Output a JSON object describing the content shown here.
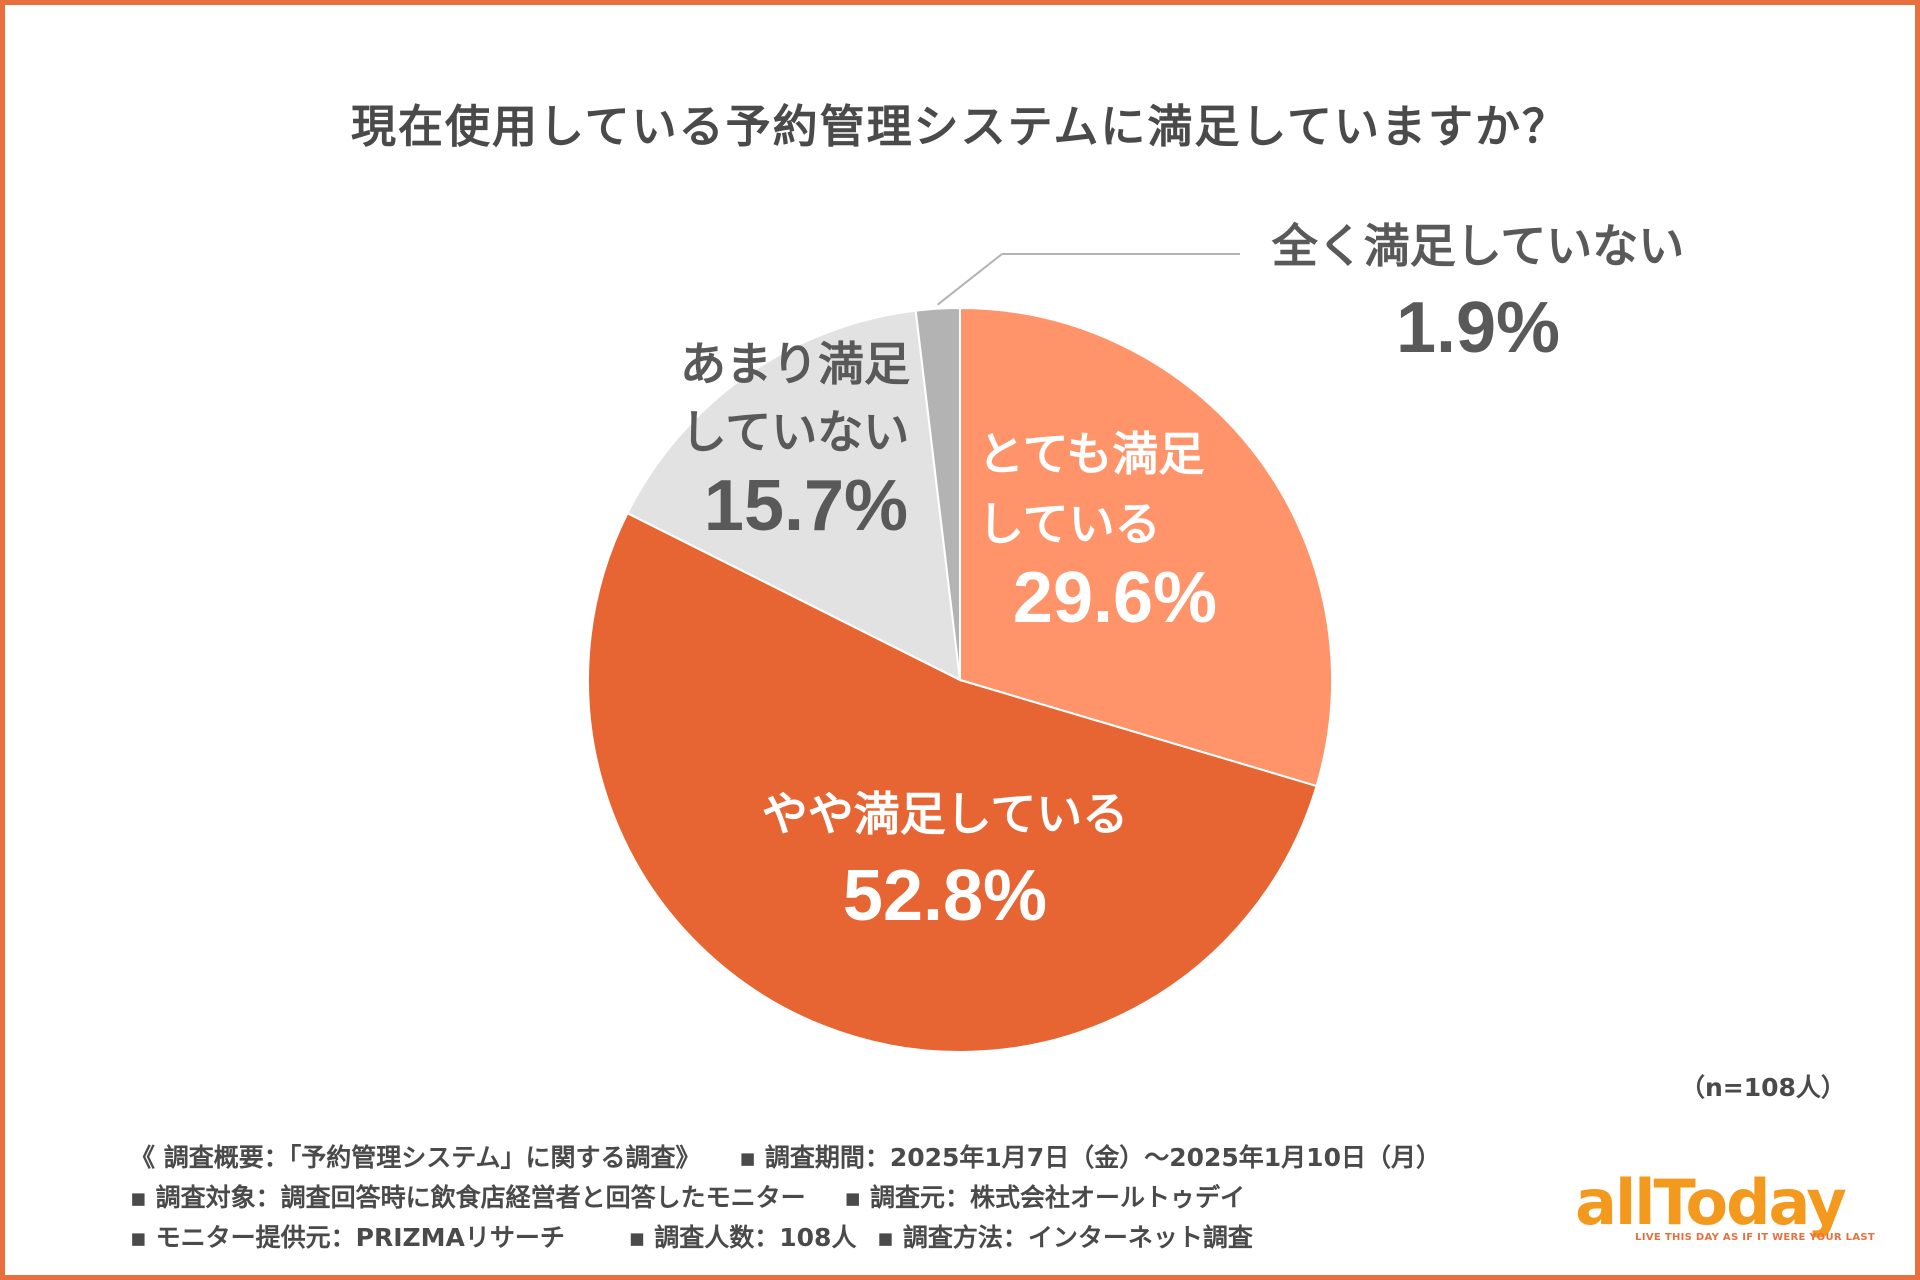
{
  "title": "現在使用している予約管理システムに満足していますか？",
  "sample_size": "（n=108人）",
  "chart_data": {
    "type": "pie",
    "title": "現在使用している予約管理システムに満足していますか？",
    "slices": [
      {
        "label_lines": [
          "とても満足",
          "している"
        ],
        "value": 29.6,
        "value_label": "29.6%",
        "color": "#ff946a",
        "text_color": "#ffffff"
      },
      {
        "label_lines": [
          "やや満足している"
        ],
        "value": 52.8,
        "value_label": "52.8%",
        "color": "#e66533",
        "text_color": "#ffffff"
      },
      {
        "label_lines": [
          "あまり満足",
          "していない"
        ],
        "value": 15.7,
        "value_label": "15.7%",
        "color": "#e2e2e2",
        "text_color": "#595959"
      },
      {
        "label_lines": [
          "全く満足していない"
        ],
        "value": 1.9,
        "value_label": "1.9%",
        "color": "#b3b3b3",
        "text_color": "#595959"
      }
    ]
  },
  "notes": {
    "row1": [
      "《 調査概要：「予約管理システム」に関する調査》",
      "▪ 調査期間：2025年1月7日（金）〜2025年1月10日（月）"
    ],
    "row2": [
      "▪ 調査対象：調査回答時に飲食店経営者と回答したモニター",
      "▪ 調査元：株式会社オールトゥデイ"
    ],
    "row3": [
      "▪ モニター提供元：PRIZMAリサーチ",
      "▪ 調査人数：108人",
      "▪ 調査方法：インターネット調査"
    ]
  },
  "logo": {
    "name": "allToday",
    "tagline": "LIVE THIS DAY AS IF IT WERE YOUR LAST",
    "color": "#f39a1e",
    "tagline_color": "#e8703e"
  },
  "colors": {
    "frame": "#e8703e",
    "text": "#4a4a4a"
  }
}
